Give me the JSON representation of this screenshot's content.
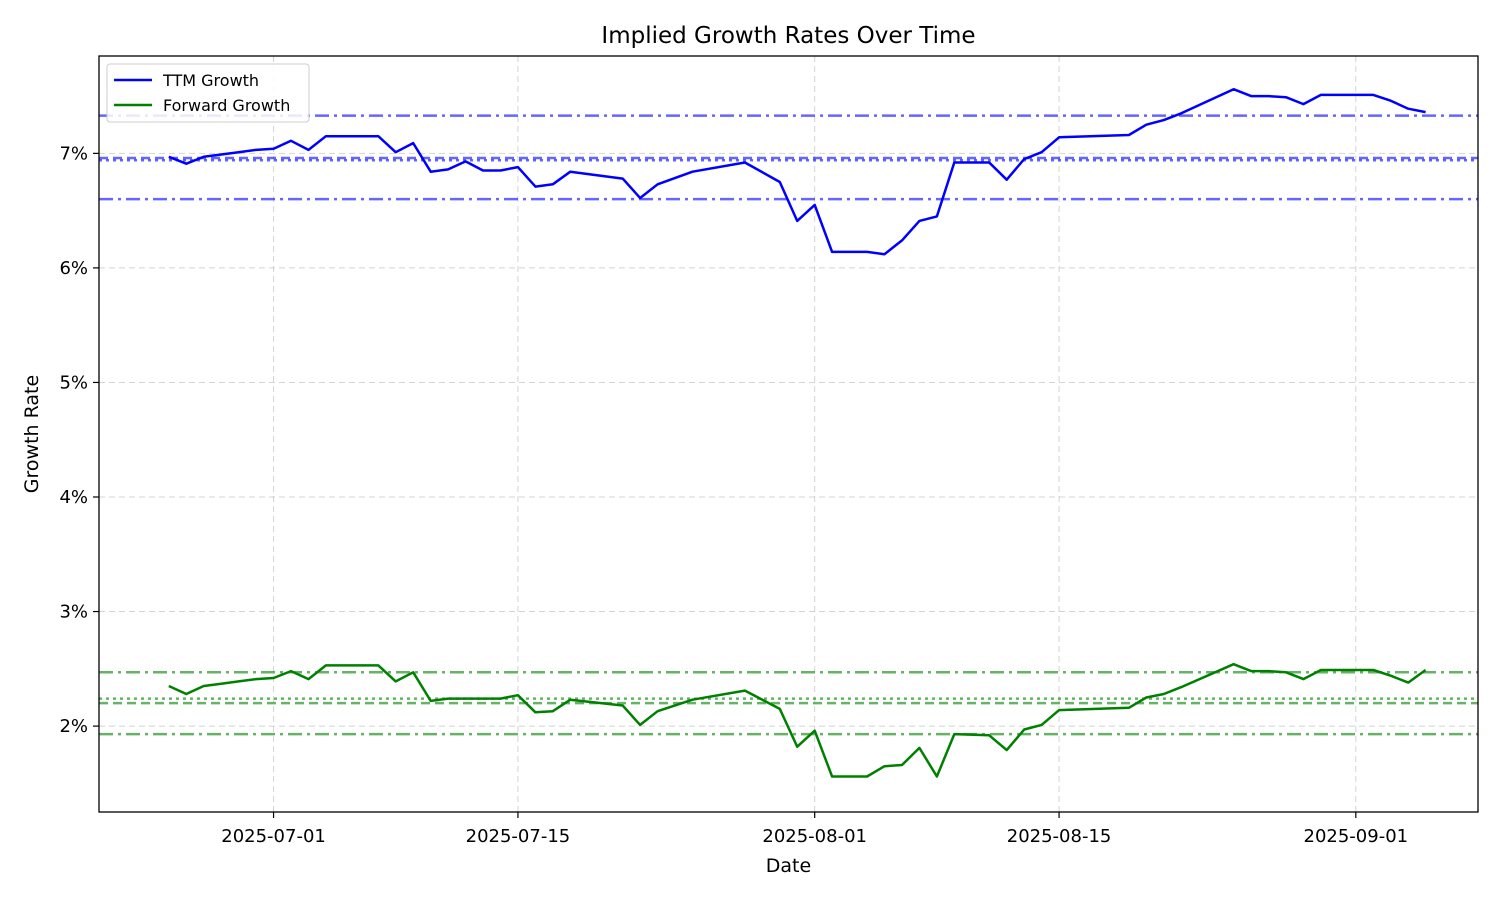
{
  "chart_data": {
    "type": "line",
    "title": "Implied Growth Rates Over Time",
    "xlabel": "Date",
    "ylabel": "Growth Rate",
    "xlim": [
      "2025-06-21",
      "2025-09-08"
    ],
    "ylim": [
      1.25,
      7.85
    ],
    "x_ticks": [
      "2025-07-01",
      "2025-07-15",
      "2025-08-01",
      "2025-08-15",
      "2025-09-01"
    ],
    "y_ticks": [
      2,
      3,
      4,
      5,
      6,
      7
    ],
    "y_tick_labels": [
      "2%",
      "3%",
      "4%",
      "5%",
      "6%",
      "7%"
    ],
    "grid": true,
    "legend_position": "top-left",
    "series": [
      {
        "name": "TTM Growth",
        "color": "#0000ff",
        "points": [
          [
            "2025-06-25",
            6.97
          ],
          [
            "2025-06-26",
            6.91
          ],
          [
            "2025-06-27",
            6.97
          ],
          [
            "2025-06-28",
            6.99
          ],
          [
            "2025-06-29",
            7.01
          ],
          [
            "2025-06-30",
            7.03
          ],
          [
            "2025-07-01",
            7.04
          ],
          [
            "2025-07-02",
            7.11
          ],
          [
            "2025-07-03",
            7.03
          ],
          [
            "2025-07-04",
            7.15
          ],
          [
            "2025-07-07",
            7.15
          ],
          [
            "2025-07-08",
            7.01
          ],
          [
            "2025-07-09",
            7.09
          ],
          [
            "2025-07-10",
            6.84
          ],
          [
            "2025-07-11",
            6.86
          ],
          [
            "2025-07-12",
            6.93
          ],
          [
            "2025-07-13",
            6.85
          ],
          [
            "2025-07-14",
            6.85
          ],
          [
            "2025-07-15",
            6.88
          ],
          [
            "2025-07-16",
            6.71
          ],
          [
            "2025-07-17",
            6.73
          ],
          [
            "2025-07-18",
            6.84
          ],
          [
            "2025-07-21",
            6.78
          ],
          [
            "2025-07-22",
            6.61
          ],
          [
            "2025-07-23",
            6.73
          ],
          [
            "2025-07-25",
            6.84
          ],
          [
            "2025-07-28",
            6.92
          ],
          [
            "2025-07-30",
            6.75
          ],
          [
            "2025-07-31",
            6.41
          ],
          [
            "2025-08-01",
            6.55
          ],
          [
            "2025-08-02",
            6.14
          ],
          [
            "2025-08-04",
            6.14
          ],
          [
            "2025-08-05",
            6.12
          ],
          [
            "2025-08-06",
            6.24
          ],
          [
            "2025-08-07",
            6.41
          ],
          [
            "2025-08-08",
            6.45
          ],
          [
            "2025-08-09",
            6.92
          ],
          [
            "2025-08-11",
            6.92
          ],
          [
            "2025-08-12",
            6.77
          ],
          [
            "2025-08-13",
            6.95
          ],
          [
            "2025-08-14",
            7.01
          ],
          [
            "2025-08-15",
            7.14
          ],
          [
            "2025-08-19",
            7.16
          ],
          [
            "2025-08-20",
            7.25
          ],
          [
            "2025-08-21",
            7.29
          ],
          [
            "2025-08-22",
            7.35
          ],
          [
            "2025-08-25",
            7.56
          ],
          [
            "2025-08-26",
            7.5
          ],
          [
            "2025-08-27",
            7.5
          ],
          [
            "2025-08-28",
            7.49
          ],
          [
            "2025-08-29",
            7.43
          ],
          [
            "2025-08-30",
            7.51
          ],
          [
            "2025-09-02",
            7.51
          ],
          [
            "2025-09-03",
            7.46
          ],
          [
            "2025-09-04",
            7.39
          ],
          [
            "2025-09-05",
            7.36
          ]
        ],
        "reference_lines": [
          {
            "value": 7.33,
            "style": "dashdot"
          },
          {
            "value": 6.96,
            "style": "dashed"
          },
          {
            "value": 6.94,
            "style": "dotted"
          },
          {
            "value": 6.6,
            "style": "dashdot"
          }
        ]
      },
      {
        "name": "Forward Growth",
        "color": "#008000",
        "points": [
          [
            "2025-06-25",
            2.35
          ],
          [
            "2025-06-26",
            2.28
          ],
          [
            "2025-06-27",
            2.35
          ],
          [
            "2025-06-28",
            2.37
          ],
          [
            "2025-06-29",
            2.39
          ],
          [
            "2025-06-30",
            2.41
          ],
          [
            "2025-07-01",
            2.42
          ],
          [
            "2025-07-02",
            2.48
          ],
          [
            "2025-07-03",
            2.41
          ],
          [
            "2025-07-04",
            2.53
          ],
          [
            "2025-07-07",
            2.53
          ],
          [
            "2025-07-08",
            2.39
          ],
          [
            "2025-07-09",
            2.47
          ],
          [
            "2025-07-10",
            2.22
          ],
          [
            "2025-07-11",
            2.24
          ],
          [
            "2025-07-12",
            2.24
          ],
          [
            "2025-07-14",
            2.24
          ],
          [
            "2025-07-15",
            2.27
          ],
          [
            "2025-07-16",
            2.12
          ],
          [
            "2025-07-17",
            2.13
          ],
          [
            "2025-07-18",
            2.23
          ],
          [
            "2025-07-21",
            2.18
          ],
          [
            "2025-07-22",
            2.01
          ],
          [
            "2025-07-23",
            2.13
          ],
          [
            "2025-07-25",
            2.23
          ],
          [
            "2025-07-28",
            2.31
          ],
          [
            "2025-07-30",
            2.15
          ],
          [
            "2025-07-31",
            1.82
          ],
          [
            "2025-08-01",
            1.96
          ],
          [
            "2025-08-02",
            1.56
          ],
          [
            "2025-08-04",
            1.56
          ],
          [
            "2025-08-05",
            1.65
          ],
          [
            "2025-08-06",
            1.66
          ],
          [
            "2025-08-07",
            1.81
          ],
          [
            "2025-08-08",
            1.56
          ],
          [
            "2025-08-09",
            1.93
          ],
          [
            "2025-08-11",
            1.92
          ],
          [
            "2025-08-12",
            1.79
          ],
          [
            "2025-08-13",
            1.97
          ],
          [
            "2025-08-14",
            2.01
          ],
          [
            "2025-08-15",
            2.14
          ],
          [
            "2025-08-19",
            2.16
          ],
          [
            "2025-08-20",
            2.25
          ],
          [
            "2025-08-21",
            2.28
          ],
          [
            "2025-08-22",
            2.34
          ],
          [
            "2025-08-25",
            2.54
          ],
          [
            "2025-08-26",
            2.48
          ],
          [
            "2025-08-27",
            2.48
          ],
          [
            "2025-08-28",
            2.47
          ],
          [
            "2025-08-29",
            2.41
          ],
          [
            "2025-08-30",
            2.49
          ],
          [
            "2025-09-02",
            2.49
          ],
          [
            "2025-09-03",
            2.44
          ],
          [
            "2025-09-04",
            2.38
          ],
          [
            "2025-09-05",
            2.49
          ]
        ],
        "reference_lines": [
          {
            "value": 2.47,
            "style": "dashdot"
          },
          {
            "value": 2.24,
            "style": "dotted"
          },
          {
            "value": 2.2,
            "style": "dashed"
          },
          {
            "value": 1.93,
            "style": "dashdot"
          }
        ]
      }
    ]
  }
}
